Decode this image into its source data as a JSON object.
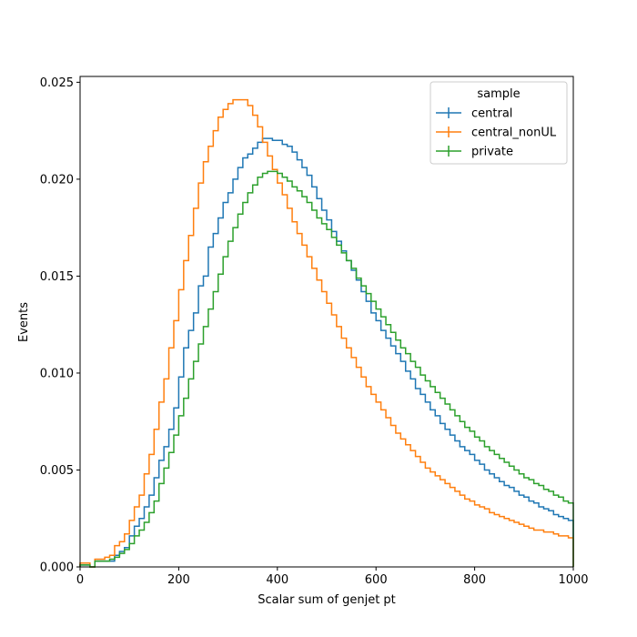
{
  "chart_data": {
    "type": "line",
    "style": "step-histogram",
    "xlabel": "Scalar sum of genjet pt",
    "ylabel": "Events",
    "xlim": [
      0,
      1000
    ],
    "ylim": [
      0,
      0.0253
    ],
    "xticks": [
      "0",
      "200",
      "400",
      "600",
      "800",
      "1000"
    ],
    "yticks": [
      "0.000",
      "0.005",
      "0.010",
      "0.015",
      "0.020",
      "0.025"
    ],
    "grid": false,
    "legend": {
      "title": "sample",
      "placement": "top-right"
    },
    "bin_width": 10,
    "bin_edges_start": 0,
    "series": [
      {
        "name": "central",
        "color": "#1f77b4",
        "values": [
          0.0001,
          0.0001,
          0.0,
          0.0003,
          0.0003,
          0.0003,
          0.0003,
          0.0006,
          0.0008,
          0.001,
          0.0016,
          0.0021,
          0.0025,
          0.0031,
          0.0037,
          0.0046,
          0.0055,
          0.0062,
          0.0071,
          0.0082,
          0.0098,
          0.0113,
          0.0122,
          0.0131,
          0.0145,
          0.015,
          0.0165,
          0.0172,
          0.018,
          0.0188,
          0.0193,
          0.02,
          0.0206,
          0.0211,
          0.0213,
          0.0216,
          0.0219,
          0.0221,
          0.0221,
          0.022,
          0.022,
          0.0218,
          0.0217,
          0.0214,
          0.021,
          0.0206,
          0.0202,
          0.0196,
          0.019,
          0.0184,
          0.0179,
          0.0173,
          0.0168,
          0.0163,
          0.0158,
          0.0153,
          0.0148,
          0.0142,
          0.0137,
          0.0131,
          0.0127,
          0.0122,
          0.0118,
          0.0114,
          0.011,
          0.0106,
          0.0101,
          0.0097,
          0.0092,
          0.0089,
          0.0085,
          0.0081,
          0.0078,
          0.0074,
          0.0071,
          0.0068,
          0.0065,
          0.0062,
          0.006,
          0.0058,
          0.0055,
          0.0053,
          0.005,
          0.0048,
          0.0046,
          0.0044,
          0.0042,
          0.0041,
          0.0039,
          0.0037,
          0.0036,
          0.0034,
          0.0033,
          0.0031,
          0.003,
          0.0029,
          0.0027,
          0.0026,
          0.0025,
          0.0024
        ]
      },
      {
        "name": "central_nonUL",
        "color": "#ff7f0e",
        "values": [
          0.0002,
          0.0002,
          0.0,
          0.0004,
          0.0004,
          0.0005,
          0.0006,
          0.0011,
          0.0013,
          0.0017,
          0.0024,
          0.0031,
          0.0037,
          0.0048,
          0.0058,
          0.0071,
          0.0085,
          0.0097,
          0.0113,
          0.0127,
          0.0143,
          0.0158,
          0.0171,
          0.0185,
          0.0198,
          0.0209,
          0.0217,
          0.0225,
          0.0232,
          0.0236,
          0.0239,
          0.0241,
          0.0241,
          0.0241,
          0.0238,
          0.0233,
          0.0227,
          0.0219,
          0.0212,
          0.0205,
          0.0198,
          0.0192,
          0.0185,
          0.0178,
          0.0172,
          0.0166,
          0.016,
          0.0154,
          0.0148,
          0.0142,
          0.0136,
          0.013,
          0.0124,
          0.0118,
          0.0113,
          0.0108,
          0.0103,
          0.0098,
          0.0093,
          0.0089,
          0.0085,
          0.0081,
          0.0077,
          0.0073,
          0.0069,
          0.0066,
          0.0063,
          0.006,
          0.0057,
          0.0054,
          0.0051,
          0.0049,
          0.0047,
          0.0045,
          0.0043,
          0.0041,
          0.0039,
          0.0037,
          0.0035,
          0.0034,
          0.0032,
          0.0031,
          0.003,
          0.0028,
          0.0027,
          0.0026,
          0.0025,
          0.0024,
          0.0023,
          0.0022,
          0.0021,
          0.002,
          0.0019,
          0.0019,
          0.0018,
          0.0018,
          0.0017,
          0.0016,
          0.0016,
          0.0015
        ]
      },
      {
        "name": "private",
        "color": "#2ca02c",
        "values": [
          0.0001,
          0.0001,
          0.0,
          0.0003,
          0.0003,
          0.0003,
          0.0004,
          0.0005,
          0.0007,
          0.0009,
          0.0012,
          0.0016,
          0.0019,
          0.0023,
          0.0028,
          0.0034,
          0.0043,
          0.0051,
          0.0059,
          0.0068,
          0.0078,
          0.0087,
          0.0097,
          0.0106,
          0.0115,
          0.0124,
          0.0133,
          0.0142,
          0.0151,
          0.016,
          0.0168,
          0.0175,
          0.0182,
          0.0188,
          0.0193,
          0.0197,
          0.0201,
          0.0203,
          0.0204,
          0.0204,
          0.0203,
          0.0201,
          0.0199,
          0.0196,
          0.0194,
          0.0191,
          0.0188,
          0.0184,
          0.018,
          0.0177,
          0.0174,
          0.017,
          0.0166,
          0.0162,
          0.0158,
          0.0154,
          0.0149,
          0.0145,
          0.0141,
          0.0137,
          0.0133,
          0.0129,
          0.0125,
          0.0121,
          0.0117,
          0.0113,
          0.011,
          0.0106,
          0.0103,
          0.0099,
          0.0096,
          0.0093,
          0.009,
          0.0087,
          0.0084,
          0.0081,
          0.0078,
          0.0075,
          0.0072,
          0.007,
          0.0067,
          0.0065,
          0.0062,
          0.006,
          0.0058,
          0.0056,
          0.0054,
          0.0052,
          0.005,
          0.0048,
          0.0046,
          0.0045,
          0.0043,
          0.0042,
          0.004,
          0.0039,
          0.0037,
          0.0036,
          0.0034,
          0.0033
        ]
      }
    ]
  }
}
